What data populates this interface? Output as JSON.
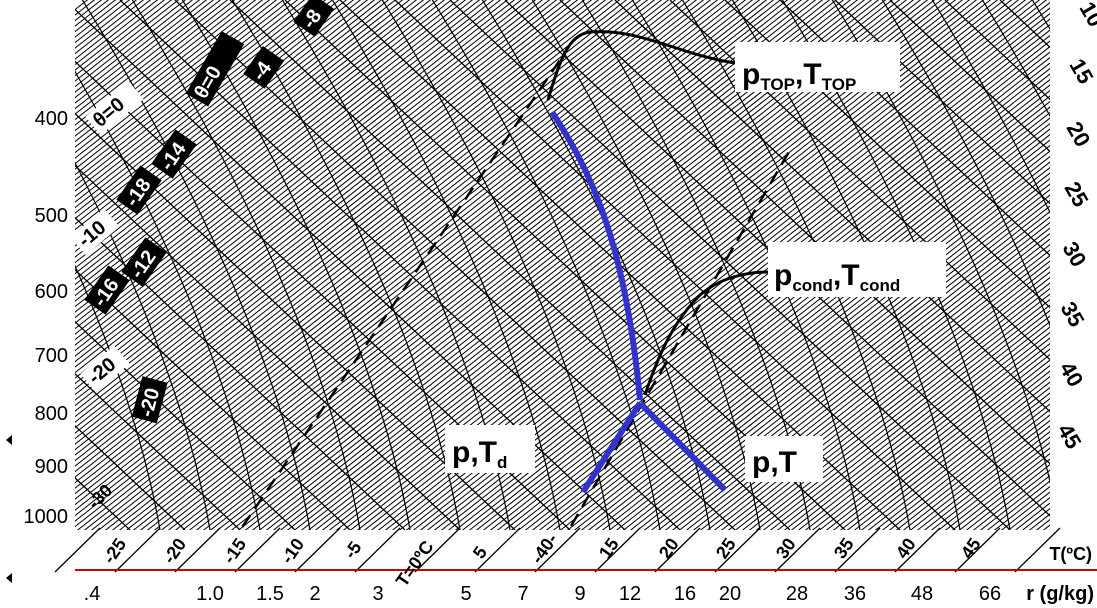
{
  "pressure_axis": {
    "ticks": [
      "400",
      "500",
      "600",
      "700",
      "800",
      "900",
      "1000"
    ]
  },
  "right_axis": {
    "ticks": [
      "10",
      "15",
      "20",
      "25",
      "30",
      "35",
      "40",
      "45"
    ]
  },
  "temperature_axis": {
    "label": "T(ºC)",
    "ticks": [
      "-25",
      "-20",
      "-15",
      "-10",
      "-5",
      "T=0ºC",
      "5",
      "-40-",
      "15",
      "20",
      "25",
      "30",
      "35",
      "40",
      "45"
    ]
  },
  "mixing_ratio_axis": {
    "label": "r (g/kg)",
    "ticks": [
      ".4",
      "1.0",
      "1.5",
      "2",
      "3",
      "5",
      "7",
      "9",
      "12",
      "16",
      "20",
      "28",
      "36",
      "48",
      "66"
    ]
  },
  "diagram_labels": {
    "theta_zero_top": "θ=0",
    "theta_zero_left": "θ=0",
    "minus_4": "-4",
    "minus_8": "-8",
    "minus_10": "-10",
    "minus_12": "-12",
    "minus_14": "-14",
    "minus_16": "-16",
    "minus_18": "-18",
    "minus_20_white": "-20",
    "minus_20_black": "-20",
    "minus_30": "-30"
  },
  "callouts": {
    "top": {
      "main": "p",
      "sub1": "TOP",
      "sep": ",T",
      "sub2": "TOP"
    },
    "cond": {
      "main": "p",
      "sub1": "cond",
      "sep": ",T",
      "sub2": "cond"
    },
    "dew": {
      "main": "p,T",
      "sub": "d"
    },
    "temp": {
      "main": "p,T"
    }
  },
  "colors": {
    "grid": "#000000",
    "sounding": "#3333cc",
    "axis_line": "#cc0000",
    "background": "#ffffff"
  }
}
